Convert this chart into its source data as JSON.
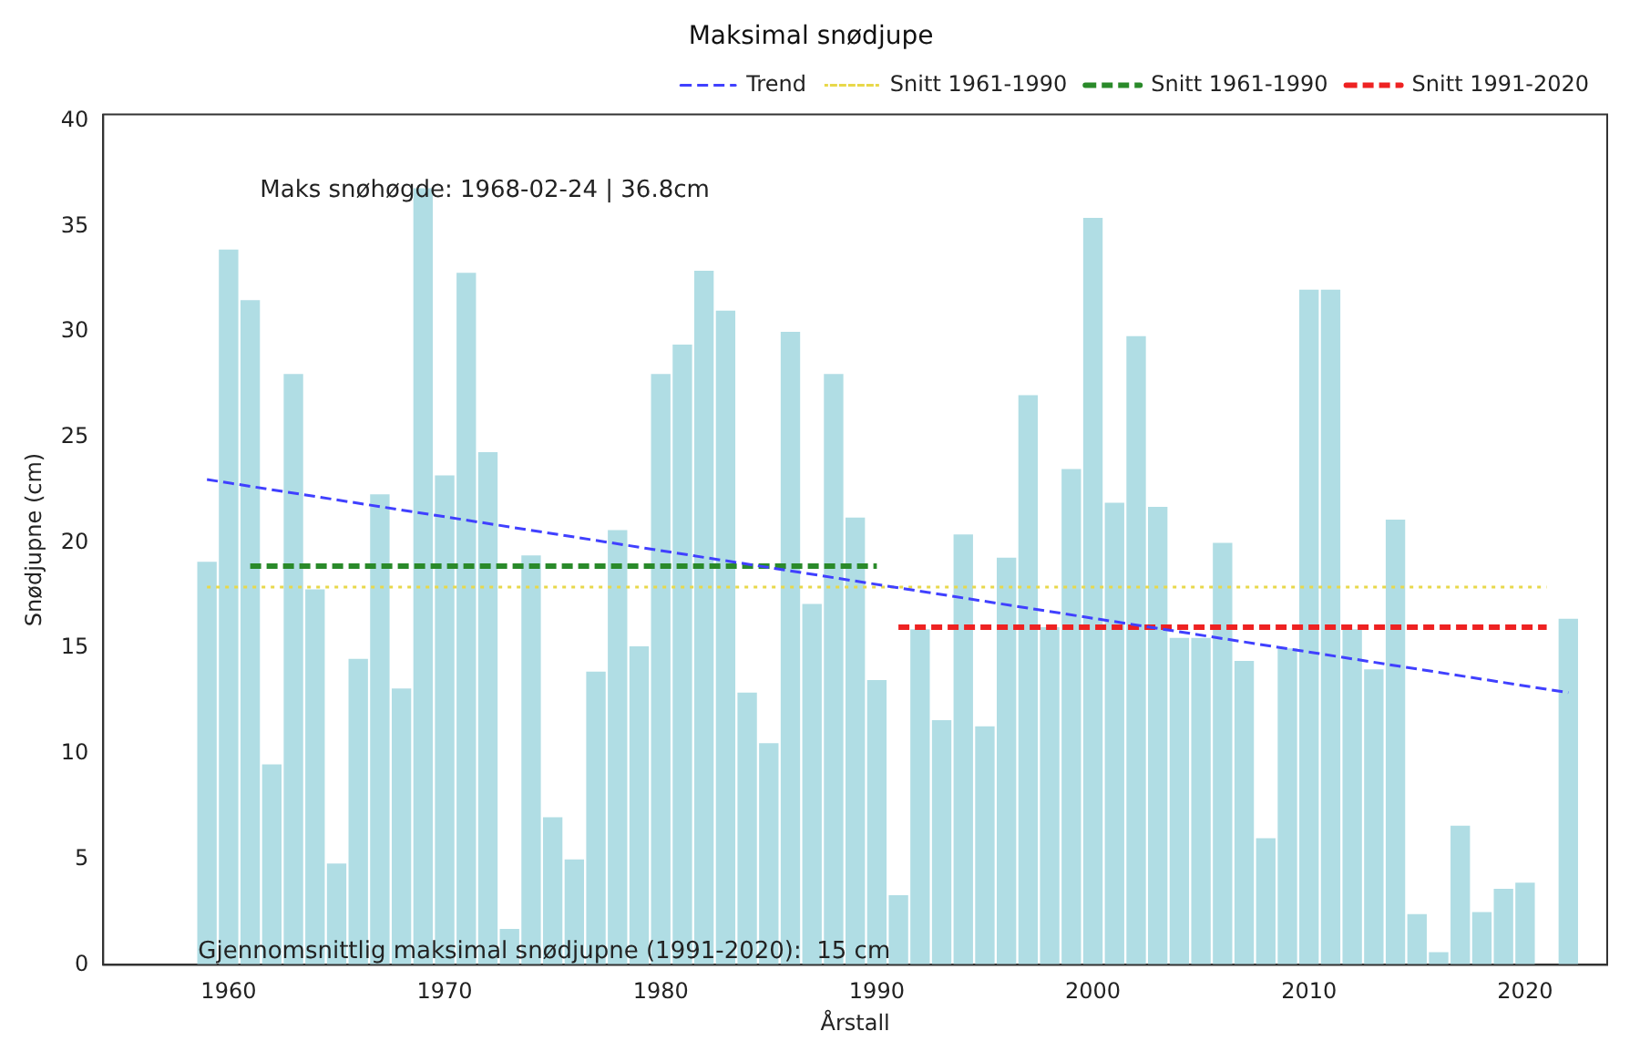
{
  "chart_data": {
    "type": "bar",
    "title": "Maksimal snødjupe",
    "xlabel": "Årstall",
    "ylabel": "Snødjupne (cm)",
    "x": [
      1959,
      1960,
      1961,
      1962,
      1963,
      1964,
      1965,
      1966,
      1967,
      1968,
      1969,
      1970,
      1971,
      1972,
      1973,
      1974,
      1975,
      1976,
      1977,
      1978,
      1979,
      1980,
      1981,
      1982,
      1983,
      1984,
      1985,
      1986,
      1987,
      1988,
      1989,
      1990,
      1991,
      1992,
      1993,
      1994,
      1995,
      1996,
      1997,
      1998,
      1999,
      2000,
      2001,
      2002,
      2003,
      2004,
      2005,
      2006,
      2007,
      2008,
      2009,
      2010,
      2011,
      2012,
      2013,
      2014,
      2015,
      2016,
      2017,
      2018,
      2019,
      2020,
      2022
    ],
    "series": [
      {
        "color": "#b0dde4",
        "values": [
          19.1,
          33.9,
          31.5,
          9.5,
          28.0,
          17.8,
          4.8,
          14.5,
          22.3,
          13.1,
          36.8,
          23.2,
          32.8,
          24.3,
          1.7,
          19.4,
          7.0,
          5.0,
          13.9,
          20.6,
          15.1,
          28.0,
          29.4,
          32.9,
          31.0,
          12.9,
          10.5,
          30.0,
          17.1,
          28.0,
          21.2,
          13.5,
          3.3,
          15.9,
          11.6,
          20.4,
          11.3,
          19.3,
          27.0,
          16.0,
          23.5,
          35.4,
          21.9,
          29.8,
          21.7,
          15.5,
          15.5,
          20.0,
          14.4,
          6.0,
          15.0,
          32.0,
          32.0,
          15.9,
          14.0,
          21.1,
          2.4,
          0.6,
          6.6,
          2.5,
          3.6,
          3.9,
          16.4
        ]
      },
      {
        "type": "line",
        "name": "Trend",
        "color": "#4040ff",
        "line_style": "dashed",
        "x": [
          1959,
          2022
        ],
        "values": [
          23.0,
          12.9
        ]
      },
      {
        "type": "line",
        "name": "Snitt 1961-1990",
        "color": "#e8d84a",
        "line_style": "dotted",
        "x": [
          1959,
          2021
        ],
        "values": [
          17.9,
          17.9
        ]
      },
      {
        "type": "line",
        "name": "Snitt 1961-1990",
        "color": "#2a8a2a",
        "line_style": "dashed",
        "x": [
          1961,
          1990
        ],
        "values": [
          18.9,
          18.9
        ]
      },
      {
        "type": "line",
        "name": "Snitt 1991-2020",
        "color": "#ee2222",
        "line_style": "dashed",
        "x": [
          1991,
          2021
        ],
        "values": [
          16.0,
          16.0
        ]
      }
    ],
    "marker": "none",
    "xlim": [
      1954.2,
      2023.8
    ],
    "xticks": [
      1960,
      1970,
      1980,
      1990,
      2000,
      2010,
      2020
    ],
    "ylim": [
      0,
      40.3
    ],
    "yticks": [
      0,
      5,
      10,
      15,
      20,
      25,
      30,
      35,
      40
    ],
    "grid": false,
    "legend": "top right",
    "annotations": [
      "Maks snøhøgde: 1968-02-24 | 36.8cm",
      "Gjennomsnittlig maksimal snødjupne (1991-2020):  15 cm"
    ]
  }
}
